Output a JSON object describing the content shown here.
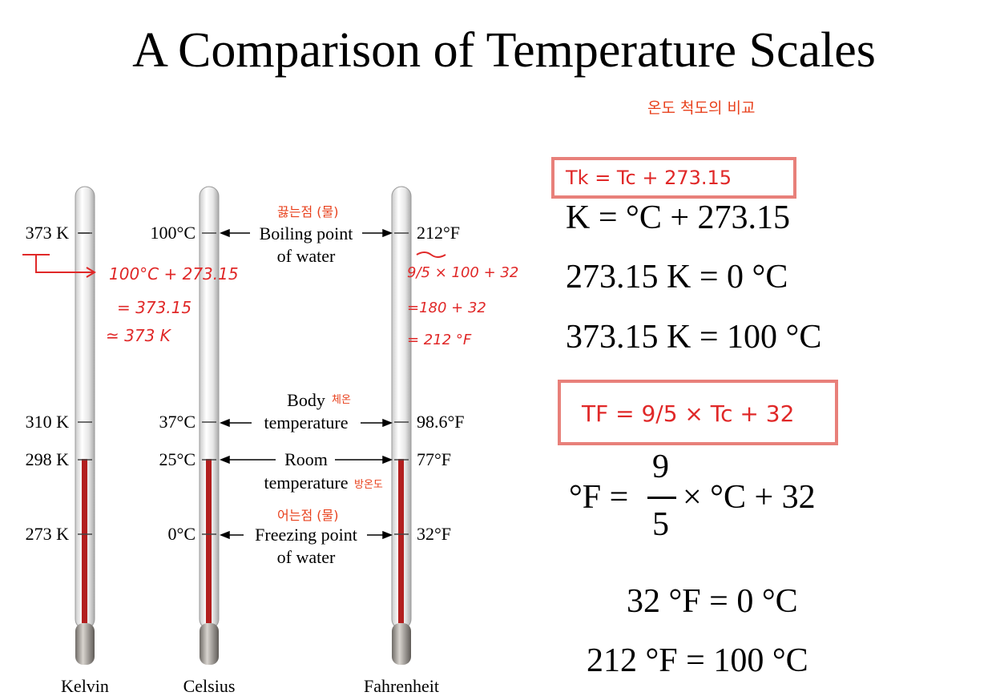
{
  "title": "A Comparison of Temperature Scales",
  "notes": {
    "korean_subtitle": "온도 척도의 비교",
    "boiling_kr": "끓는점 (물)",
    "body_kr": "체온",
    "room_kr": "방온도",
    "freezing_kr": "어는점 (물)",
    "kelvin_work": [
      "100°C + 273.15",
      "= 373.15",
      "≃ 373 K"
    ],
    "fahr_work": [
      "9/5 × 100 + 32",
      "=180 + 32",
      "= 212 °F"
    ],
    "box1": "Tk = Tc + 273.15",
    "box2": "TF = 9/5 × Tc + 32"
  },
  "scales": {
    "kelvin": {
      "name": "Kelvin",
      "ticks": [
        "373 K",
        "310 K",
        "298 K",
        "273 K"
      ]
    },
    "celsius": {
      "name": "Celsius",
      "ticks": [
        "100°C",
        "37°C",
        "25°C",
        "0°C"
      ]
    },
    "fahrenheit": {
      "name": "Fahrenheit",
      "ticks": [
        "212°F",
        "98.6°F",
        "77°F",
        "32°F"
      ]
    }
  },
  "reference_points": [
    {
      "line1": "Boiling point",
      "line2": "of water"
    },
    {
      "line1": "Body",
      "line2": "temperature"
    },
    {
      "line1": "Room",
      "line2": "temperature"
    },
    {
      "line1": "Freezing point",
      "line2": "of water"
    }
  ],
  "equations": {
    "e1": "K = °C + 273.15",
    "e2": "273.15 K = 0 °C",
    "e3": "373.15 K = 100 °C",
    "e4_left": "°F =",
    "e4_num": "9",
    "e4_den": "5",
    "e4_right": "× °C + 32",
    "e5": "32 °F = 0 °C",
    "e6": "212 °F = 100 °C"
  },
  "colors": {
    "mercury": "#b21f1f",
    "annotation_orange": "#e8401c",
    "highlight_box": "#e8807a"
  }
}
